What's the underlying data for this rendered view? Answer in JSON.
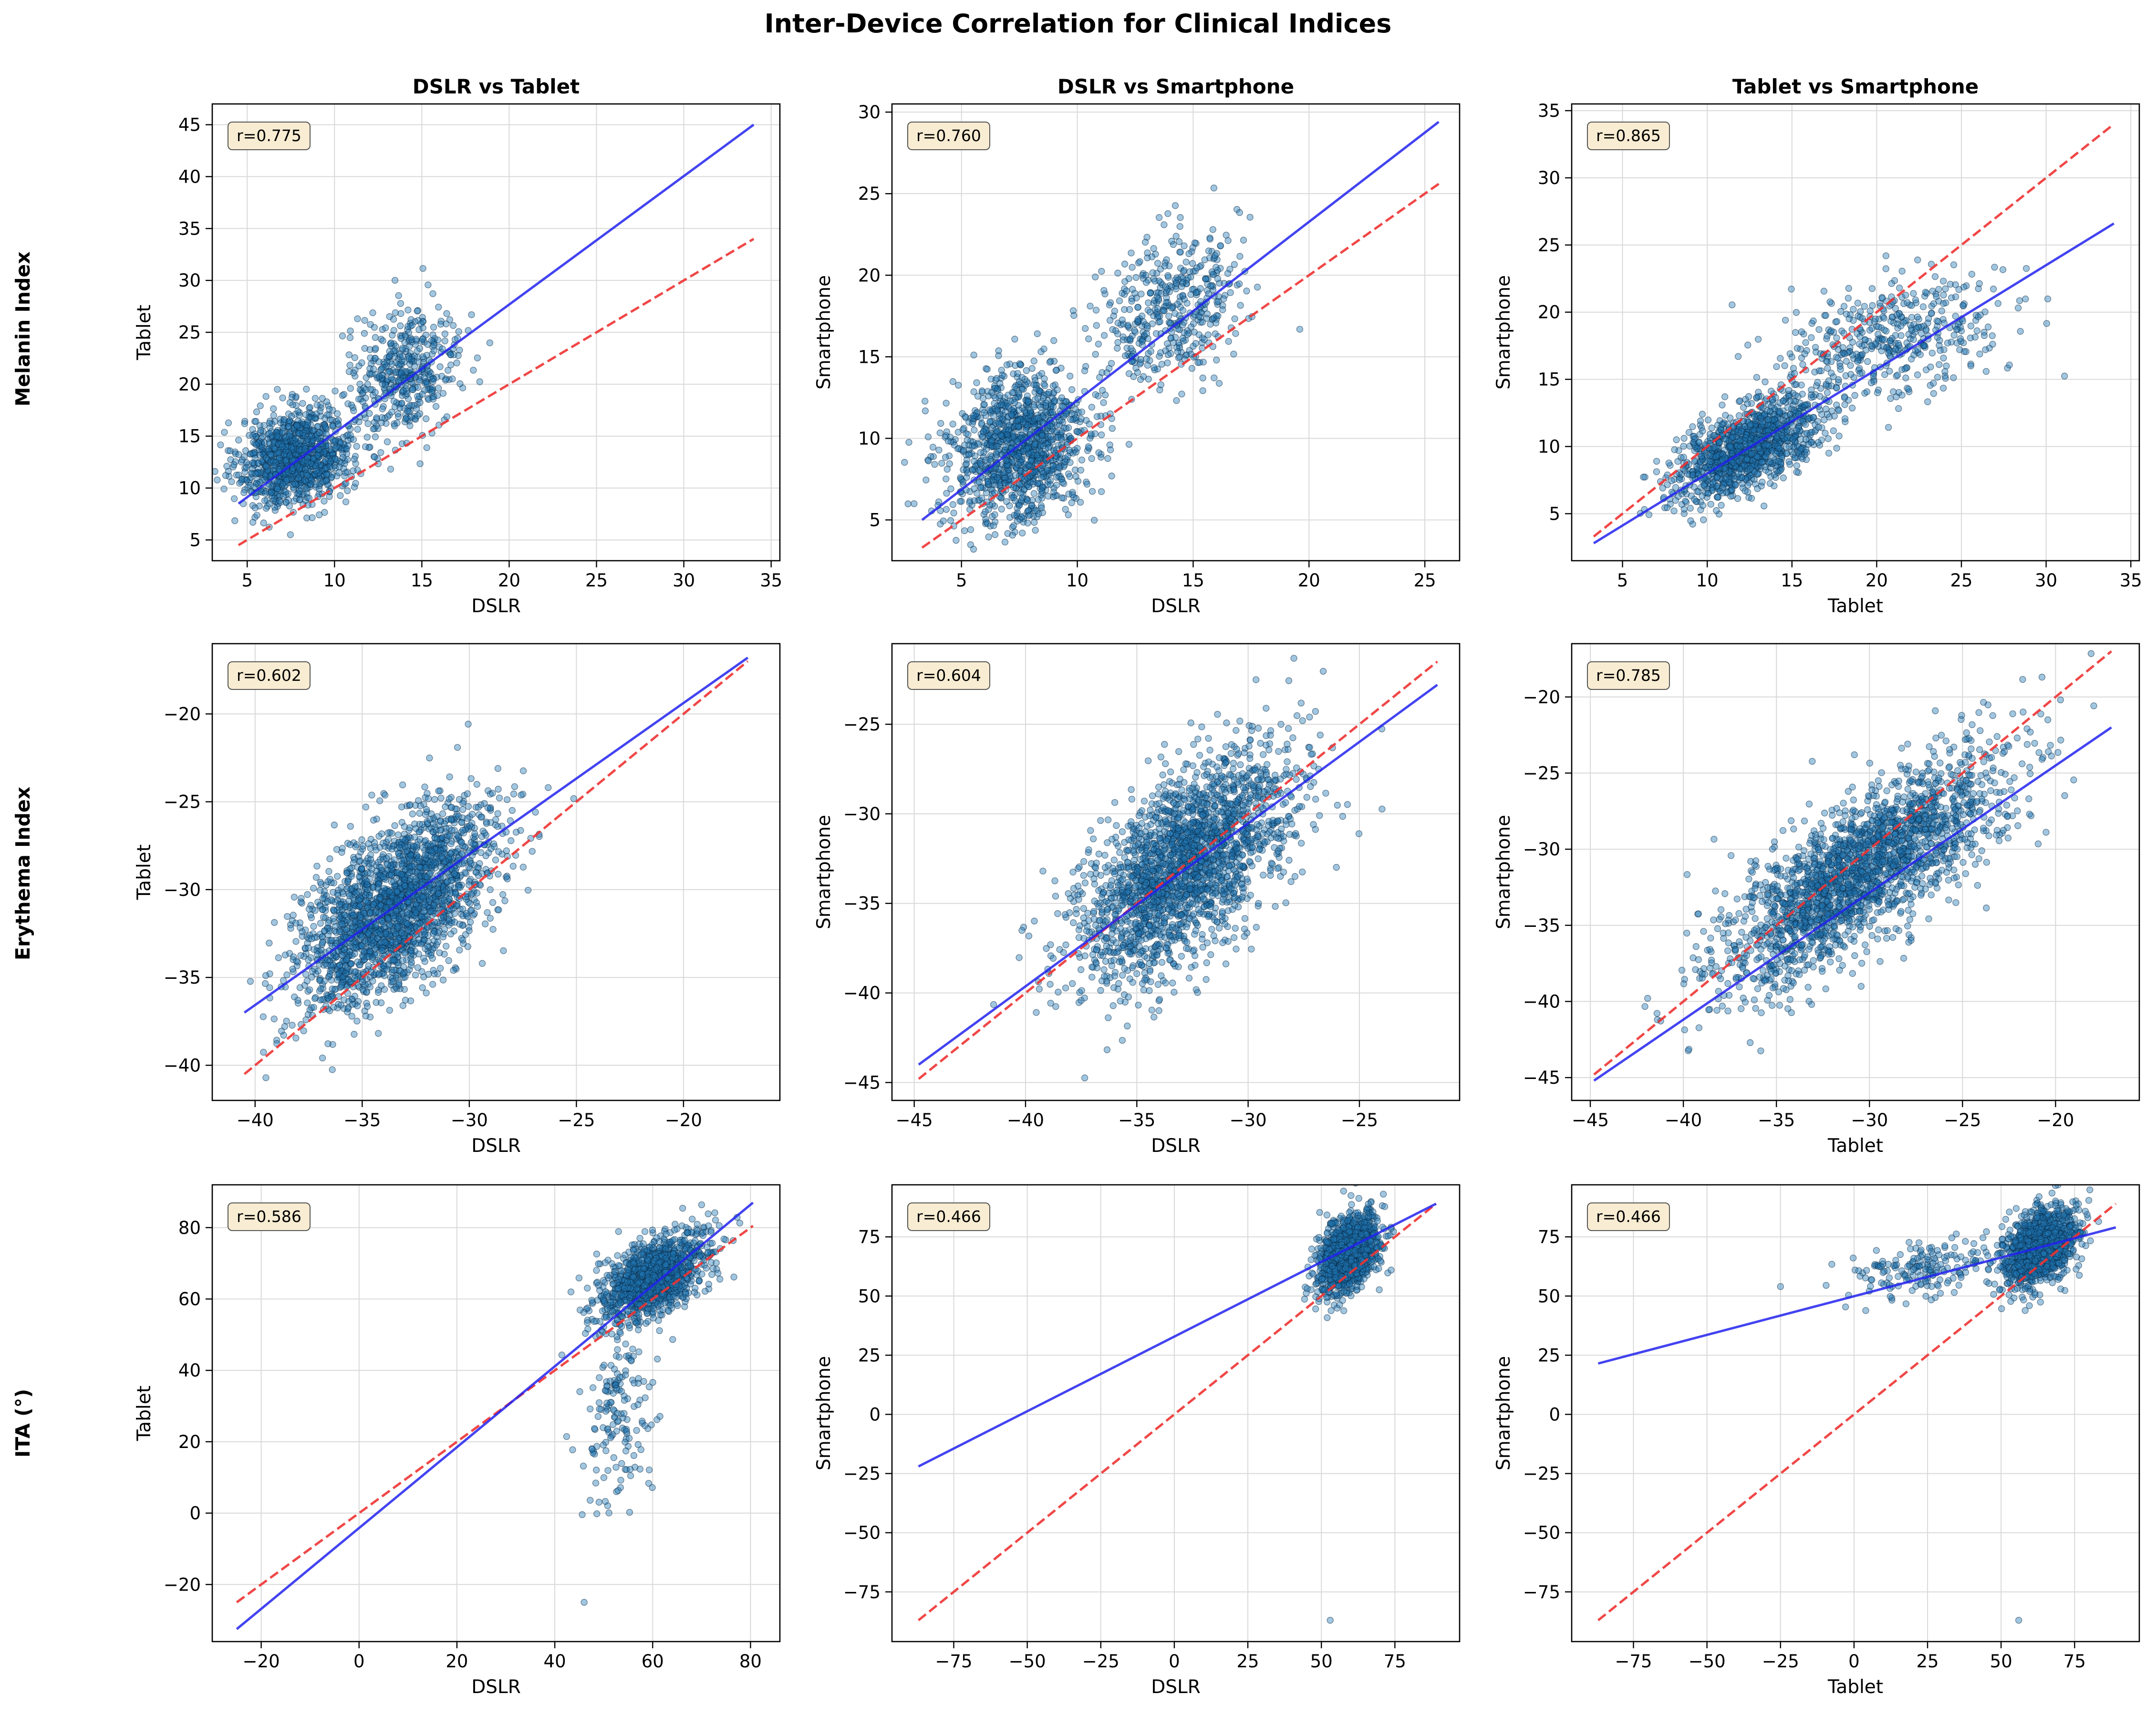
{
  "figure": {
    "title": "Inter-Device Correlation for Clinical Indices",
    "row_labels": [
      "Melanin Index",
      "Erythema Index",
      "ITA (°)"
    ],
    "col_titles": [
      "DSLR vs Tablet",
      "DSLR vs Smartphone",
      "Tablet vs Smartphone"
    ]
  },
  "colors": {
    "scatter_fill": "#1f77b4",
    "scatter_edge": "#0b2a45",
    "regression": "#2222ee",
    "identity": "#ee3333",
    "annotation_bg": "#f8ecd2",
    "grid": "#d9d9d9"
  },
  "chart_data": [
    {
      "type": "scatter",
      "row": 0,
      "col": 0,
      "title": "DSLR vs Tablet",
      "xlabel": "DSLR",
      "ylabel": "Tablet",
      "r_label": "r=0.775",
      "xlim": [
        3,
        35.5
      ],
      "ylim": [
        3,
        47
      ],
      "xticks": [
        5,
        10,
        15,
        20,
        25,
        30,
        35
      ],
      "yticks": [
        5,
        10,
        15,
        20,
        25,
        30,
        35,
        40,
        45
      ],
      "regression": {
        "x": [
          4.5,
          34
        ],
        "y": [
          8.5,
          45
        ]
      },
      "identity": {
        "x": [
          4.5,
          34
        ],
        "y": [
          4.5,
          34
        ]
      },
      "clusters": [
        {
          "cx": 7.8,
          "cy": 13,
          "sx": 1.6,
          "sy": 2.3,
          "rho": 0.2,
          "n": 1100
        },
        {
          "cx": 14,
          "cy": 21,
          "sx": 1.6,
          "sy": 3.0,
          "rho": 0.2,
          "n": 450
        }
      ],
      "grid": true
    },
    {
      "type": "scatter",
      "row": 0,
      "col": 1,
      "title": "DSLR vs Smartphone",
      "xlabel": "DSLR",
      "ylabel": "Smartphone",
      "r_label": "r=0.760",
      "xlim": [
        2,
        26.5
      ],
      "ylim": [
        2.5,
        30.5
      ],
      "xticks": [
        5,
        10,
        15,
        20,
        25
      ],
      "yticks": [
        5,
        10,
        15,
        20,
        25,
        30
      ],
      "regression": {
        "x": [
          3.3,
          25.6
        ],
        "y": [
          5,
          29.4
        ]
      },
      "identity": {
        "x": [
          3.3,
          25.6
        ],
        "y": [
          3.3,
          25.6
        ]
      },
      "clusters": [
        {
          "cx": 7.5,
          "cy": 9.5,
          "sx": 1.5,
          "sy": 2.4,
          "rho": 0.15,
          "n": 1200
        },
        {
          "cx": 14,
          "cy": 18,
          "sx": 1.5,
          "sy": 2.3,
          "rho": 0.2,
          "n": 450
        }
      ],
      "grid": true
    },
    {
      "type": "scatter",
      "row": 0,
      "col": 2,
      "title": "Tablet vs Smartphone",
      "xlabel": "Tablet",
      "ylabel": "Smartphone",
      "r_label": "r=0.865",
      "xlim": [
        2,
        35.5
      ],
      "ylim": [
        1.5,
        35.5
      ],
      "xticks": [
        5,
        10,
        15,
        20,
        25,
        30,
        35
      ],
      "yticks": [
        5,
        10,
        15,
        20,
        25,
        30,
        35
      ],
      "regression": {
        "x": [
          3.3,
          34
        ],
        "y": [
          2.8,
          26.6
        ]
      },
      "identity": {
        "x": [
          3.3,
          34
        ],
        "y": [
          3.3,
          34
        ]
      },
      "clusters": [
        {
          "cx": 12.5,
          "cy": 10,
          "sx": 2.2,
          "sy": 1.9,
          "rho": 0.65,
          "n": 1200
        },
        {
          "cx": 21,
          "cy": 18,
          "sx": 3.2,
          "sy": 2.4,
          "rho": 0.4,
          "n": 450
        }
      ],
      "grid": true
    },
    {
      "type": "scatter",
      "row": 1,
      "col": 0,
      "title": "",
      "xlabel": "DSLR",
      "ylabel": "Tablet",
      "r_label": "r=0.602",
      "xlim": [
        -42,
        -15.5
      ],
      "ylim": [
        -42,
        -16
      ],
      "xticks": [
        -40,
        -35,
        -30,
        -25,
        -20
      ],
      "yticks": [
        -40,
        -35,
        -30,
        -25,
        -20
      ],
      "regression": {
        "x": [
          -40.5,
          -17
        ],
        "y": [
          -37,
          -16.8
        ]
      },
      "identity": {
        "x": [
          -40.5,
          -17
        ],
        "y": [
          -40.5,
          -17
        ]
      },
      "clusters": [
        {
          "cx": -33.5,
          "cy": -31,
          "sx": 2.3,
          "sy": 2.8,
          "rho": 0.6,
          "n": 2200
        }
      ],
      "grid": true
    },
    {
      "type": "scatter",
      "row": 1,
      "col": 1,
      "title": "",
      "xlabel": "DSLR",
      "ylabel": "Smartphone",
      "r_label": "r=0.604",
      "xlim": [
        -46,
        -20.5
      ],
      "ylim": [
        -46,
        -20.5
      ],
      "xticks": [
        -45,
        -40,
        -35,
        -30,
        -25
      ],
      "yticks": [
        -45,
        -40,
        -35,
        -30,
        -25
      ],
      "regression": {
        "x": [
          -44.8,
          -21.5
        ],
        "y": [
          -44,
          -22.8
        ]
      },
      "identity": {
        "x": [
          -44.8,
          -21.5
        ],
        "y": [
          -44.8,
          -21.5
        ]
      },
      "clusters": [
        {
          "cx": -33,
          "cy": -33,
          "sx": 2.4,
          "sy": 3.2,
          "rho": 0.6,
          "n": 2200
        }
      ],
      "grid": true
    },
    {
      "type": "scatter",
      "row": 1,
      "col": 2,
      "title": "",
      "xlabel": "Tablet",
      "ylabel": "Smartphone",
      "r_label": "r=0.785",
      "xlim": [
        -46,
        -15.5
      ],
      "ylim": [
        -46.5,
        -16.5
      ],
      "xticks": [
        -45,
        -40,
        -35,
        -30,
        -25,
        -20
      ],
      "yticks": [
        -45,
        -40,
        -35,
        -30,
        -25,
        -20
      ],
      "regression": {
        "x": [
          -44.8,
          -17
        ],
        "y": [
          -45.2,
          -22
        ]
      },
      "identity": {
        "x": [
          -44.8,
          -17
        ],
        "y": [
          -44.8,
          -17
        ]
      },
      "clusters": [
        {
          "cx": -30.5,
          "cy": -31.5,
          "sx": 3.8,
          "sy": 3.8,
          "rho": 0.78,
          "n": 2200
        }
      ],
      "grid": true
    },
    {
      "type": "scatter",
      "row": 2,
      "col": 0,
      "title": "",
      "xlabel": "DSLR",
      "ylabel": "Tablet",
      "r_label": "r=0.586",
      "xlim": [
        -30,
        86
      ],
      "ylim": [
        -36,
        92
      ],
      "xticks": [
        -20,
        0,
        20,
        40,
        60,
        80
      ],
      "yticks": [
        -20,
        0,
        20,
        40,
        60,
        80
      ],
      "regression": {
        "x": [
          -25,
          80.5
        ],
        "y": [
          -32.5,
          87
        ]
      },
      "identity": {
        "x": [
          -25,
          80.5
        ],
        "y": [
          -25,
          80.5
        ]
      },
      "clusters": [
        {
          "cx": 60,
          "cy": 66,
          "sx": 5.5,
          "sy": 6,
          "rho": 0.55,
          "n": 1200
        },
        {
          "cx": 53,
          "cy": 25,
          "sx": 3.5,
          "sy": 12,
          "rho": 0.1,
          "n": 160
        }
      ],
      "outliers": [
        [
          46,
          -25
        ]
      ],
      "grid": true
    },
    {
      "type": "scatter",
      "row": 2,
      "col": 1,
      "title": "",
      "xlabel": "DSLR",
      "ylabel": "Smartphone",
      "r_label": "r=0.466",
      "xlim": [
        -96,
        97
      ],
      "ylim": [
        -96,
        97
      ],
      "xticks": [
        -75,
        -50,
        -25,
        0,
        25,
        50,
        75
      ],
      "yticks": [
        -75,
        -50,
        -25,
        0,
        25,
        50,
        75
      ],
      "regression": {
        "x": [
          -87,
          89
        ],
        "y": [
          -22,
          89
        ]
      },
      "identity": {
        "x": [
          -87,
          89
        ],
        "y": [
          -87,
          89
        ]
      },
      "clusters": [
        {
          "cx": 59,
          "cy": 68,
          "sx": 5,
          "sy": 8,
          "rho": 0.35,
          "n": 1400
        }
      ],
      "outliers": [
        [
          53,
          -87
        ]
      ],
      "grid": true
    },
    {
      "type": "scatter",
      "row": 2,
      "col": 2,
      "title": "",
      "xlabel": "Tablet",
      "ylabel": "Smartphone",
      "r_label": "r=0.466",
      "xlim": [
        -96,
        97
      ],
      "ylim": [
        -96,
        97
      ],
      "xticks": [
        -75,
        -50,
        -25,
        0,
        25,
        50,
        75
      ],
      "yticks": [
        -75,
        -50,
        -25,
        0,
        25,
        50,
        75
      ],
      "regression": {
        "x": [
          -87,
          89
        ],
        "y": [
          21.5,
          79
        ]
      },
      "identity": {
        "x": [
          -87,
          89
        ],
        "y": [
          -87,
          89
        ]
      },
      "clusters": [
        {
          "cx": 63,
          "cy": 70,
          "sx": 6,
          "sy": 8,
          "rho": 0.35,
          "n": 1300
        },
        {
          "cx": 25,
          "cy": 62,
          "sx": 12,
          "sy": 6,
          "rho": 0.3,
          "n": 180
        }
      ],
      "outliers": [
        [
          56,
          -87
        ],
        [
          -25,
          54
        ]
      ],
      "grid": true
    }
  ]
}
